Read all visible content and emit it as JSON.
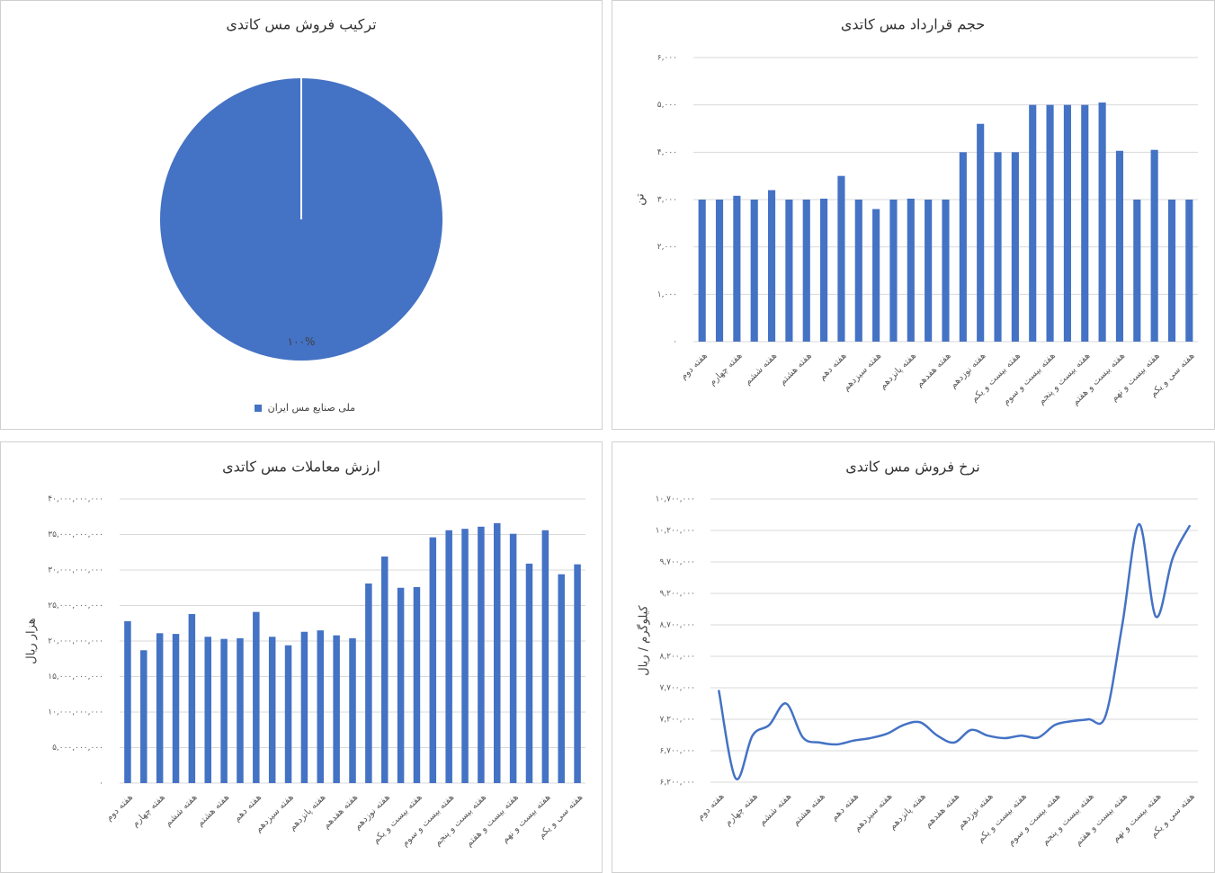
{
  "chart_data": [
    {
      "type": "pie",
      "title": "ترکیب فروش مس کاتدی",
      "categories": [
        "ملی صنایع مس ایران"
      ],
      "values": [
        100
      ],
      "value_labels": [
        "۱۰۰%"
      ],
      "colors": [
        "#4472c4"
      ],
      "legend": "bottom"
    },
    {
      "type": "bar",
      "title": "حجم قرارداد مس کاتدی",
      "y_label": "تن",
      "color": "#4472c4",
      "grid": true,
      "categories": [
        "هفته دوم",
        null,
        "هفته چهارم",
        null,
        "هفته ششم",
        null,
        "هفته هشتم",
        null,
        "هفته دهم",
        null,
        "هفته سیزدهم",
        null,
        "هفته پانزدهم",
        null,
        "هفته هفدهم",
        null,
        "هفته نوزدهم",
        null,
        "هفته بیست و یکم",
        null,
        "هفته بیست و سوم",
        null,
        "هفته بیست و پنجم",
        null,
        "هفته بیست و هفتم",
        null,
        "هفته بیست و نهم",
        null,
        "هفته سی و یکم"
      ],
      "values": [
        3000,
        3000,
        3080,
        3000,
        3200,
        3000,
        3000,
        3020,
        3500,
        3000,
        2800,
        3000,
        3020,
        3000,
        3000,
        4000,
        4600,
        4000,
        4000,
        5000,
        5000,
        5000,
        5000,
        5050,
        4030,
        3000,
        4050,
        3000,
        3000
      ],
      "ylim": [
        0,
        6000
      ],
      "yticks": [
        {
          "value": 0,
          "label": "۰"
        },
        {
          "value": 1000,
          "label": "۱,۰۰۰"
        },
        {
          "value": 2000,
          "label": "۲,۰۰۰"
        },
        {
          "value": 3000,
          "label": "۳,۰۰۰"
        },
        {
          "value": 4000,
          "label": "۴,۰۰۰"
        },
        {
          "value": 5000,
          "label": "۵,۰۰۰"
        },
        {
          "value": 6000,
          "label": "۶,۰۰۰"
        }
      ]
    },
    {
      "type": "bar",
      "title": "ارزش معاملات مس کاتدی",
      "y_label": "هزار ریال",
      "color": "#4472c4",
      "grid": true,
      "categories": [
        "هفته دوم",
        null,
        "هفته چهارم",
        null,
        "هفته ششم",
        null,
        "هفته هشتم",
        null,
        "هفته دهم",
        null,
        "هفته سیزدهم",
        null,
        "هفته پانزدهم",
        null,
        "هفته هفدهم",
        null,
        "هفته نوزدهم",
        null,
        "هفته بیست و یکم",
        null,
        "هفته بیست و سوم",
        null,
        "هفته بیست و پنجم",
        null,
        "هفته بیست و هفتم",
        null,
        "هفته بیست و نهم",
        null,
        "هفته سی و یکم"
      ],
      "values": [
        22800000000,
        18700000000,
        21100000000,
        21000000000,
        23800000000,
        20600000000,
        20300000000,
        20400000000,
        24100000000,
        20600000000,
        19400000000,
        21300000000,
        21500000000,
        20800000000,
        20400000000,
        28100000000,
        31900000000,
        27500000000,
        27600000000,
        34600000000,
        35600000000,
        35800000000,
        36100000000,
        36600000000,
        35100000000,
        30900000000,
        35600000000,
        29400000000,
        30800000000
      ],
      "ylim": [
        0,
        40000000000
      ],
      "yticks": [
        {
          "value": 0,
          "label": "۰"
        },
        {
          "value": 5000000000,
          "label": "۵,۰۰۰,۰۰۰,۰۰۰"
        },
        {
          "value": 10000000000,
          "label": "۱۰,۰۰۰,۰۰۰,۰۰۰"
        },
        {
          "value": 15000000000,
          "label": "۱۵,۰۰۰,۰۰۰,۰۰۰"
        },
        {
          "value": 20000000000,
          "label": "۲۰,۰۰۰,۰۰۰,۰۰۰"
        },
        {
          "value": 25000000000,
          "label": "۲۵,۰۰۰,۰۰۰,۰۰۰"
        },
        {
          "value": 30000000000,
          "label": "۳۰,۰۰۰,۰۰۰,۰۰۰"
        },
        {
          "value": 35000000000,
          "label": "۳۵,۰۰۰,۰۰۰,۰۰۰"
        },
        {
          "value": 40000000000,
          "label": "۴۰,۰۰۰,۰۰۰,۰۰۰"
        }
      ]
    },
    {
      "type": "line",
      "title": "نرخ فروش مس کاتدی",
      "y_label": "کیلوگرم / ریال",
      "color": "#4472c4",
      "grid": true,
      "smooth": true,
      "categories": [
        "هفته دوم",
        null,
        "هفته چهارم",
        null,
        "هفته ششم",
        null,
        "هفته هشتم",
        null,
        "هفته دهم",
        null,
        "هفته سیزدهم",
        null,
        "هفته پانزدهم",
        null,
        "هفته هفدهم",
        null,
        "هفته نوزدهم",
        null,
        "هفته بیست و یکم",
        null,
        "هفته بیست و سوم",
        null,
        "هفته بیست و پنجم",
        null,
        "هفته بیست و هفتم",
        null,
        "هفته بیست و نهم",
        null,
        "هفته سی و یکم"
      ],
      "values": [
        7650000,
        6260000,
        6940000,
        7110000,
        7450000,
        6910000,
        6830000,
        6800000,
        6860000,
        6900000,
        6970000,
        7110000,
        7150000,
        6940000,
        6830000,
        7030000,
        6940000,
        6900000,
        6940000,
        6910000,
        7110000,
        7170000,
        7200000,
        7250000,
        8700000,
        10300000,
        8830000,
        9760000,
        10270000
      ],
      "ylim": [
        6200000,
        10700000
      ],
      "yticks": [
        {
          "value": 6200000,
          "label": "۶,۲۰۰,۰۰۰"
        },
        {
          "value": 6700000,
          "label": "۶,۷۰۰,۰۰۰"
        },
        {
          "value": 7200000,
          "label": "۷,۲۰۰,۰۰۰"
        },
        {
          "value": 7700000,
          "label": "۷,۷۰۰,۰۰۰"
        },
        {
          "value": 8200000,
          "label": "۸,۲۰۰,۰۰۰"
        },
        {
          "value": 8700000,
          "label": "۸,۷۰۰,۰۰۰"
        },
        {
          "value": 9200000,
          "label": "۹,۲۰۰,۰۰۰"
        },
        {
          "value": 9700000,
          "label": "۹,۷۰۰,۰۰۰"
        },
        {
          "value": 10200000,
          "label": "۱۰,۲۰۰,۰۰۰"
        },
        {
          "value": 10700000,
          "label": "۱۰,۷۰۰,۰۰۰"
        }
      ]
    }
  ]
}
